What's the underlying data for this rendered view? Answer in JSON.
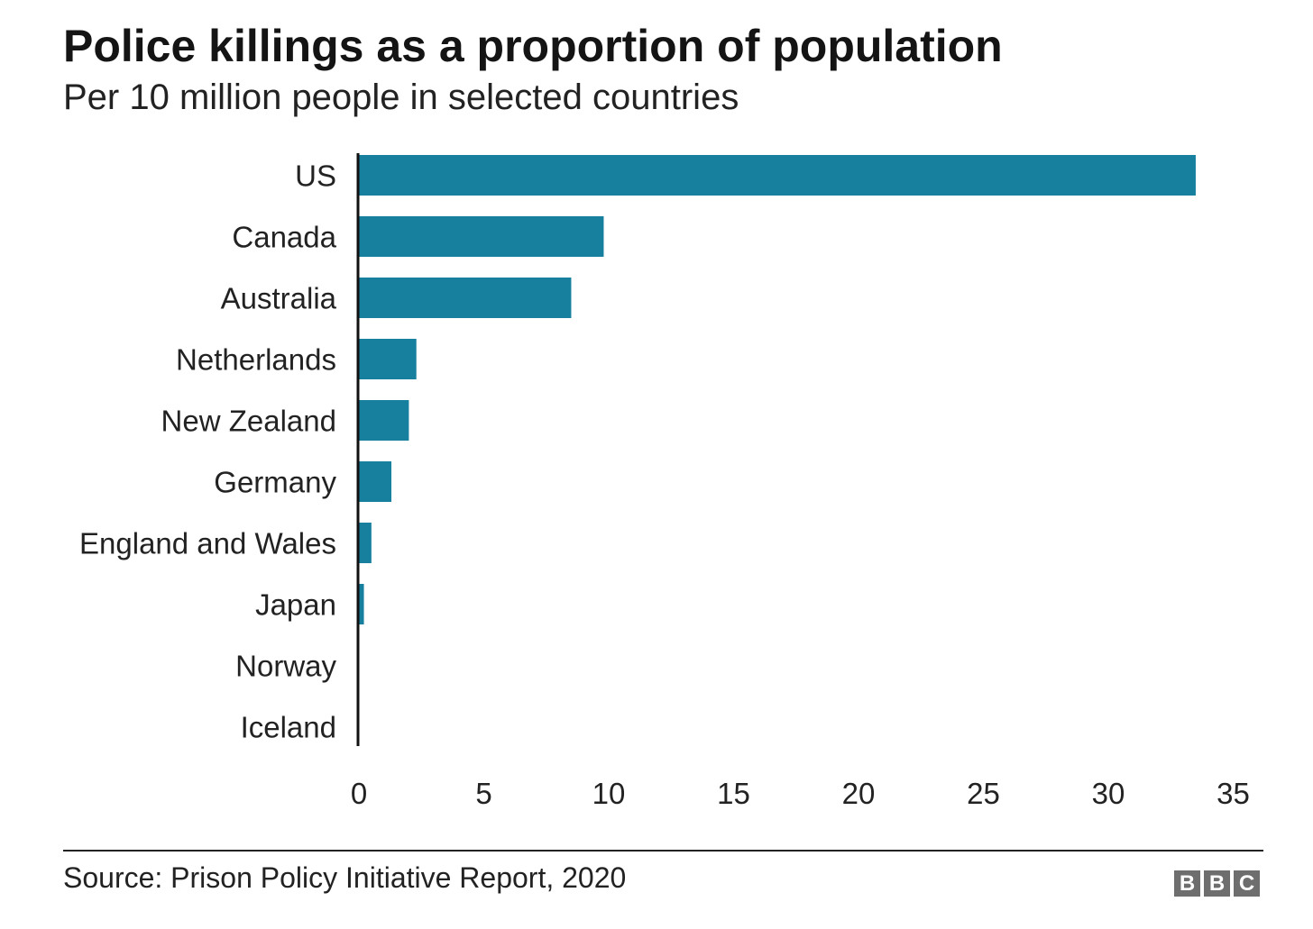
{
  "header": {
    "title": "Police killings as a proportion of population",
    "subtitle": "Per 10 million people in selected countries"
  },
  "footer": {
    "source": "Source: Prison Policy Initiative Report, 2020",
    "logo_letters": [
      "B",
      "B",
      "C"
    ]
  },
  "colors": {
    "bar": "#17809f",
    "axis": "#111111",
    "text": "#222222"
  },
  "chart_data": {
    "type": "bar",
    "orientation": "horizontal",
    "categories": [
      "US",
      "Canada",
      "Australia",
      "Netherlands",
      "New Zealand",
      "Germany",
      "England and Wales",
      "Japan",
      "Norway",
      "Iceland"
    ],
    "values": [
      33.5,
      9.8,
      8.5,
      2.3,
      2.0,
      1.3,
      0.5,
      0.2,
      0,
      0
    ],
    "xlim": [
      0,
      35
    ],
    "xticks": [
      0,
      5,
      10,
      15,
      20,
      25,
      30,
      35
    ],
    "grid": false,
    "legend": "none"
  }
}
